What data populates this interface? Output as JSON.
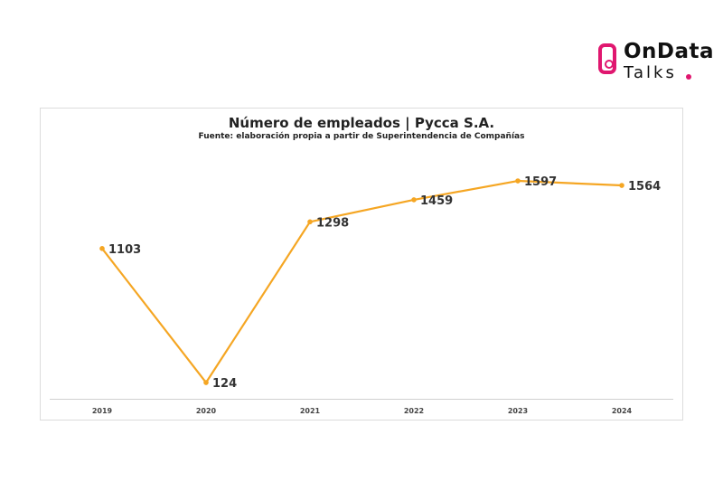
{
  "logo": {
    "line1": "OnData",
    "line2": "Talks",
    "accent": "#e0176f"
  },
  "chart_data": {
    "type": "line",
    "title": "Número de empleados | Pycca S.A.",
    "subtitle": "Fuente: elaboración propia a partir de Superintendencia de Compañías",
    "categories": [
      "2019",
      "2020",
      "2021",
      "2022",
      "2023",
      "2024"
    ],
    "series": [
      {
        "name": "Número de empleados",
        "values": [
          1103,
          124,
          1298,
          1459,
          1597,
          1564
        ],
        "color": "#f5a623"
      }
    ],
    "xlabel": "",
    "ylabel": "",
    "ylim": [
      0,
      1800
    ],
    "grid": false,
    "legend": "none"
  }
}
